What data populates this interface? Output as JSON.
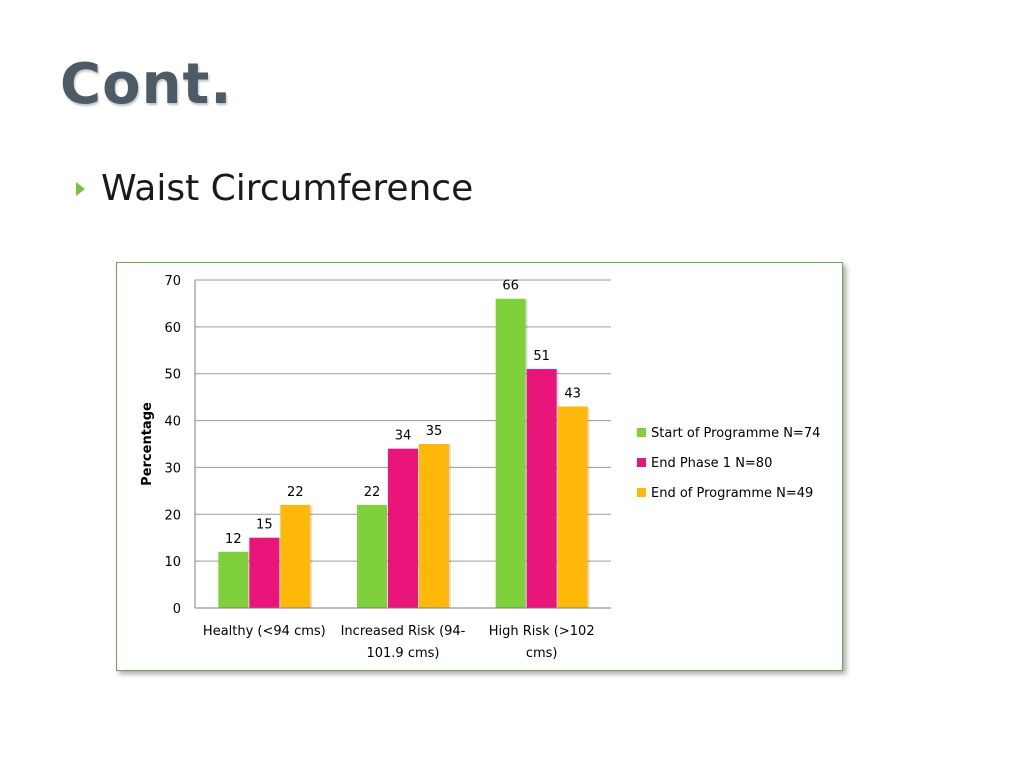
{
  "slide": {
    "title": "Cont.",
    "bullet": "Waist Circumference"
  },
  "colors": {
    "border": "#6aa84f",
    "bullet": "#7ac143"
  },
  "chart_data": {
    "type": "bar",
    "ylabel": "Percentage",
    "xlabel": "",
    "ylim": [
      0,
      70
    ],
    "yticks": [
      0,
      10,
      20,
      30,
      40,
      50,
      60,
      70
    ],
    "grid": true,
    "legend_position": "right",
    "categories": [
      [
        "Healthy (<94 cms)"
      ],
      [
        "Increased Risk (94-",
        "101.9 cms)"
      ],
      [
        "High Risk (>102",
        "cms)"
      ]
    ],
    "series": [
      {
        "name": "Start of Programme N=74",
        "color": "#7fd13b",
        "values": [
          12,
          22,
          66
        ]
      },
      {
        "name": "End Phase 1 N=80",
        "color": "#ea157a",
        "values": [
          15,
          34,
          51
        ]
      },
      {
        "name": "End of Programme N=49",
        "color": "#feb80a",
        "values": [
          22,
          35,
          43
        ]
      }
    ]
  }
}
